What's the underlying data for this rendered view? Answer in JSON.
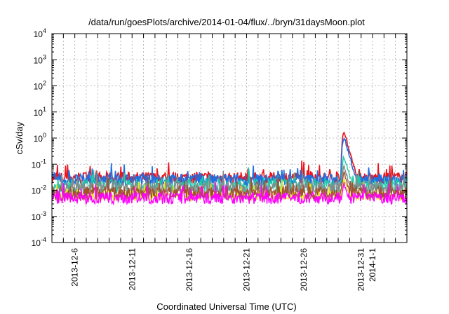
{
  "chart_data": {
    "type": "line",
    "title": "/data/run/goesPlots/archive/2014-01-04/flux/../bryn/31daysMoon.plot",
    "xlabel": "Coordinated Universal Time (UTC)",
    "ylabel": "cSv/day",
    "y_scale": "log",
    "ylim": [
      0.0001,
      10000
    ],
    "xlim": [
      "2013-12-04",
      "2014-01-04"
    ],
    "grid": true,
    "x_ticks": [
      "2013-12-6",
      "2013-12-11",
      "2013-12-16",
      "2013-12-21",
      "2013-12-26",
      "2013-12-31",
      "2014-1-1"
    ],
    "y_ticks": [
      {
        "value": 0.0001,
        "base": "10",
        "exp": "-4"
      },
      {
        "value": 0.001,
        "base": "10",
        "exp": "-3"
      },
      {
        "value": 0.01,
        "base": "10",
        "exp": "-2"
      },
      {
        "value": 0.1,
        "base": "10",
        "exp": "-1"
      },
      {
        "value": 1,
        "base": "10",
        "exp": "0"
      },
      {
        "value": 10,
        "base": "10",
        "exp": "1"
      },
      {
        "value": 100,
        "base": "10",
        "exp": "2"
      },
      {
        "value": 1000,
        "base": "10",
        "exp": "3"
      },
      {
        "value": 10000,
        "base": "10",
        "exp": "4"
      }
    ],
    "series": [
      {
        "color": "#e8141e",
        "base": 0.03,
        "noise": 0.45,
        "spike_peak": 1.8
      },
      {
        "color": "#1f6fe0",
        "base": 0.025,
        "noise": 0.45,
        "spike_peak": 1.2
      },
      {
        "color": "#20c8a8",
        "base": 0.015,
        "noise": 0.55,
        "spike_peak": 0.2
      },
      {
        "color": "#888888",
        "base": 0.012,
        "noise": 0.5,
        "spike_peak": 0.09
      },
      {
        "color": "#e8e820",
        "base": 0.006,
        "noise": 0.4,
        "spike_peak": 0.03
      },
      {
        "color": "#a0522d",
        "base": 0.008,
        "noise": 0.5,
        "spike_peak": 0.05
      },
      {
        "color": "#ff00ff",
        "base": 0.005,
        "noise": 0.45,
        "spike_peak": 0.02
      }
    ],
    "spike": {
      "start": "2013-12-29 06:00",
      "peak": "2013-12-29 12:00",
      "end": "2013-12-31 00:00"
    }
  }
}
